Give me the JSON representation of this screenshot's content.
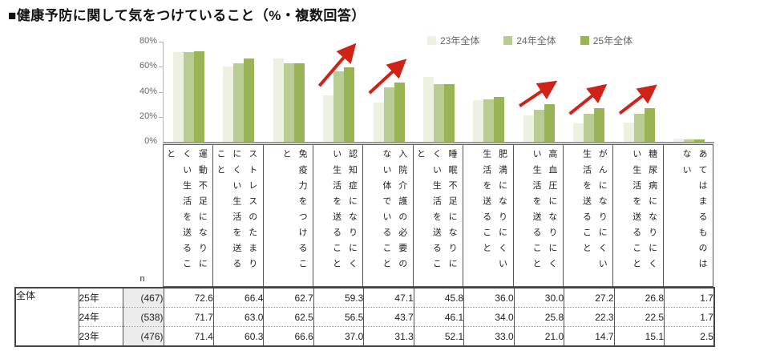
{
  "page": {
    "title": "■健康予防に関して気をつけていること（%・複数回答）"
  },
  "chart_data": {
    "type": "bar",
    "title": "健康予防に関して気をつけていること",
    "unit": "%・複数回答",
    "categories": [
      "運動不足になりにくい生活を送ること",
      "ストレスのたまりにくい生活を送ること",
      "免疫力をつけること",
      "認知症になりにくい生活を送ること",
      "入院介護の必要のない体でいること",
      "睡眠不足になりにくい生活を送ること",
      "肥満になりにくい生活を送ること",
      "高血圧になりにくい生活を送ること",
      "がんになりにくい生活を送ること",
      "糖尿病になりにくい生活を送ること",
      "あてはまるものはない"
    ],
    "series": [
      {
        "name": "23年全体",
        "color": "#edf1e0",
        "values": [
          71.4,
          60.3,
          66.6,
          37.0,
          31.3,
          52.1,
          33.0,
          21.0,
          14.7,
          15.1,
          2.5
        ]
      },
      {
        "name": "24年全体",
        "color": "#b9cc93",
        "values": [
          71.7,
          63.0,
          62.5,
          56.5,
          43.7,
          46.1,
          34.0,
          25.8,
          22.3,
          22.5,
          1.7
        ]
      },
      {
        "name": "25年全体",
        "color": "#98b455",
        "values": [
          72.6,
          66.4,
          62.7,
          59.3,
          47.1,
          45.8,
          36.0,
          30.0,
          27.2,
          26.8,
          1.7
        ]
      }
    ],
    "ylim": [
      0,
      80
    ],
    "yticks": [
      "80%",
      "60%",
      "40%",
      "20%",
      "0%"
    ],
    "grid": false,
    "legend_position": "top-right",
    "trend_arrow_categories": [
      3,
      4,
      7,
      8,
      9
    ],
    "arrow_color": "#cf2318"
  },
  "table": {
    "group_label": "全体",
    "n_header": "n",
    "rows": [
      {
        "year": "25年",
        "n": "(467)",
        "values": [
          "72.6",
          "66.4",
          "62.7",
          "59.3",
          "47.1",
          "45.8",
          "36.0",
          "30.0",
          "27.2",
          "26.8",
          "1.7"
        ]
      },
      {
        "year": "24年",
        "n": "(538)",
        "values": [
          "71.7",
          "63.0",
          "62.5",
          "56.5",
          "43.7",
          "46.1",
          "34.0",
          "25.8",
          "22.3",
          "22.5",
          "1.7"
        ]
      },
      {
        "year": "23年",
        "n": "(476)",
        "values": [
          "71.4",
          "60.3",
          "66.6",
          "37.0",
          "31.3",
          "52.1",
          "33.0",
          "21.0",
          "14.7",
          "15.1",
          "2.5"
        ]
      }
    ]
  }
}
